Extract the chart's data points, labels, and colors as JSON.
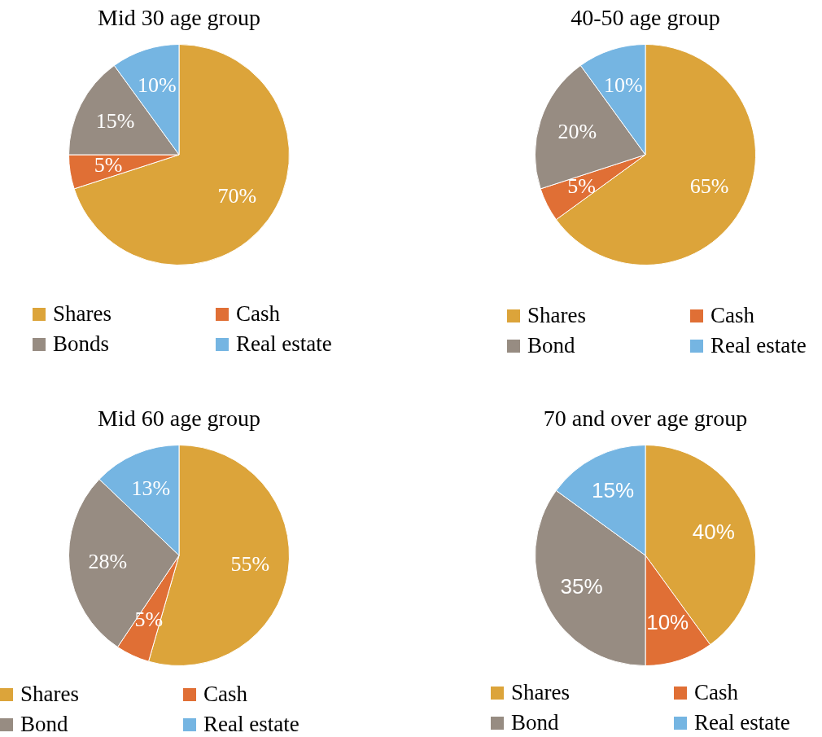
{
  "chart_data": [
    {
      "type": "pie",
      "title": "Mid 30 age group",
      "categories": [
        "Shares",
        "Cash",
        "Bonds",
        "Real estate"
      ],
      "values": [
        70,
        5,
        15,
        10
      ],
      "value_labels": [
        "70%",
        "5%",
        "15%",
        "10%"
      ],
      "colors": [
        "#dca43a",
        "#e06f35",
        "#978c82",
        "#75b5e2"
      ],
      "legend": "bottom"
    },
    {
      "type": "pie",
      "title": "40-50 age group",
      "categories": [
        "Shares",
        "Cash",
        "Bond",
        "Real estate"
      ],
      "values": [
        65,
        5,
        20,
        10
      ],
      "value_labels": [
        "65%",
        "5%",
        "20%",
        "10%"
      ],
      "colors": [
        "#dca43a",
        "#e06f35",
        "#978c82",
        "#75b5e2"
      ],
      "legend": "bottom"
    },
    {
      "type": "pie",
      "title": "Mid 60 age group",
      "categories": [
        "Shares",
        "Cash",
        "Bond",
        "Real estate"
      ],
      "values": [
        55,
        5,
        28,
        13
      ],
      "value_labels": [
        "55%",
        "5%",
        "28%",
        "13%"
      ],
      "colors": [
        "#dca43a",
        "#e06f35",
        "#978c82",
        "#75b5e2"
      ],
      "legend": "bottom"
    },
    {
      "type": "pie",
      "title": "70 and over age group",
      "categories": [
        "Shares",
        "Cash",
        "Bond",
        "Real estate"
      ],
      "values": [
        40,
        10,
        35,
        15
      ],
      "value_labels": [
        "40%",
        "10%",
        "35%",
        "15%"
      ],
      "colors": [
        "#dca43a",
        "#e06f35",
        "#978c82",
        "#75b5e2"
      ],
      "legend": "bottom"
    }
  ]
}
